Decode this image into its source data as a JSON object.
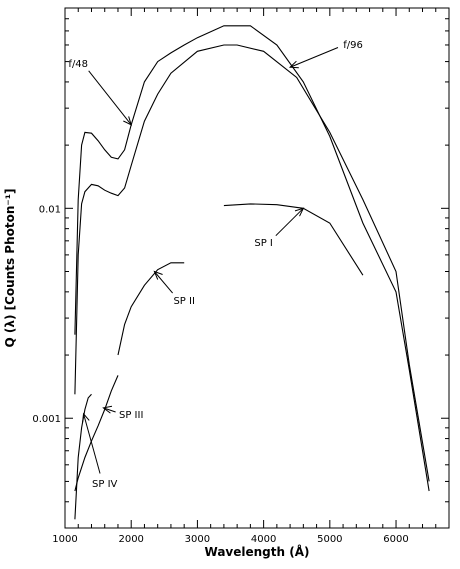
{
  "chart_data": {
    "type": "line",
    "xlabel": "Wavelength (Å)",
    "ylabel": "Q (λ) [Counts Photon⁻¹]",
    "xscale": "linear",
    "yscale": "log",
    "xlim": [
      1000,
      6800
    ],
    "ylim": [
      0.0003,
      0.09
    ],
    "grid": false,
    "x_ticks": [
      1000,
      2000,
      3000,
      4000,
      5000,
      6000
    ],
    "x_tick_labels": [
      "1000",
      "2000",
      "3000",
      "4000",
      "5000",
      "6000"
    ],
    "y_ticks": [
      0.001,
      0.01
    ],
    "y_tick_labels": [
      "0.001",
      "0.01"
    ],
    "series": [
      {
        "name": "f/48",
        "x": [
          1150,
          1200,
          1250,
          1300,
          1400,
          1500,
          1600,
          1700,
          1800,
          1900,
          2000,
          2200,
          2400,
          2600,
          2800,
          3000,
          3400,
          3800,
          4200,
          4600,
          5000,
          5500,
          6000,
          6200,
          6500
        ],
        "y": [
          0.0025,
          0.011,
          0.02,
          0.023,
          0.0228,
          0.021,
          0.019,
          0.0175,
          0.0172,
          0.019,
          0.025,
          0.04,
          0.05,
          0.055,
          0.06,
          0.065,
          0.074,
          0.074,
          0.06,
          0.04,
          0.022,
          0.0085,
          0.004,
          0.0017,
          0.00045
        ]
      },
      {
        "name": "f/96",
        "x": [
          1150,
          1200,
          1250,
          1300,
          1400,
          1500,
          1600,
          1700,
          1800,
          1900,
          2000,
          2200,
          2400,
          2600,
          3000,
          3400,
          3600,
          4000,
          4500,
          5000,
          5500,
          6000,
          6200,
          6500
        ],
        "y": [
          0.0013,
          0.006,
          0.0105,
          0.012,
          0.013,
          0.0128,
          0.0122,
          0.0118,
          0.0115,
          0.0125,
          0.016,
          0.026,
          0.035,
          0.044,
          0.056,
          0.06,
          0.06,
          0.056,
          0.042,
          0.023,
          0.011,
          0.005,
          0.0018,
          0.0005
        ]
      },
      {
        "name": "SP I",
        "x": [
          3400,
          3800,
          4200,
          4600,
          5000,
          5500
        ],
        "y": [
          0.0103,
          0.0105,
          0.0104,
          0.01,
          0.0085,
          0.0048
        ]
      },
      {
        "name": "SP II",
        "x": [
          1800,
          1900,
          2000,
          2200,
          2400,
          2600,
          2800
        ],
        "y": [
          0.002,
          0.0028,
          0.0034,
          0.0043,
          0.0051,
          0.0055,
          0.0055
        ]
      },
      {
        "name": "SP III",
        "x": [
          1150,
          1200,
          1300,
          1400,
          1500,
          1600,
          1700,
          1800
        ],
        "y": [
          0.00045,
          0.00052,
          0.00065,
          0.00078,
          0.00092,
          0.0011,
          0.00135,
          0.0016
        ]
      },
      {
        "name": "SP IV",
        "x": [
          1150,
          1200,
          1250,
          1300,
          1350,
          1400
        ],
        "y": [
          0.00033,
          0.00065,
          0.0009,
          0.0011,
          0.00125,
          0.0013
        ]
      }
    ],
    "annotations": [
      {
        "text": "f/48",
        "arrow_to_x": 2000,
        "arrow_to_y": 0.025,
        "text_x": 1200,
        "text_y": 0.047
      },
      {
        "text": "f/96",
        "arrow_to_x": 4400,
        "arrow_to_y": 0.047,
        "text_x": 5350,
        "text_y": 0.058
      },
      {
        "text": "SP I",
        "arrow_to_x": 4600,
        "arrow_to_y": 0.01,
        "text_x": 4000,
        "text_y": 0.0066
      },
      {
        "text": "SP II",
        "arrow_to_x": 2350,
        "arrow_to_y": 0.005,
        "text_x": 2800,
        "text_y": 0.0035
      },
      {
        "text": "SP III",
        "arrow_to_x": 1580,
        "arrow_to_y": 0.00112,
        "text_x": 2000,
        "text_y": 0.001
      },
      {
        "text": "SP IV",
        "arrow_to_x": 1280,
        "arrow_to_y": 0.00105,
        "text_x": 1600,
        "text_y": 0.00047
      }
    ]
  }
}
